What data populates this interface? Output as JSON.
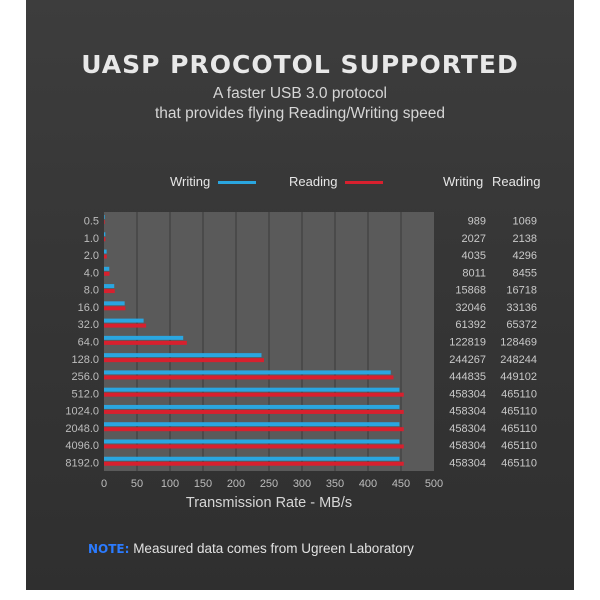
{
  "header": {
    "title": "UASP PROCOTOL SUPPORTED",
    "subtitle_line1": "A faster USB 3.0 protocol",
    "subtitle_line2": "that provides flying Reading/Writing speed"
  },
  "legend": {
    "writing_label": "Writing",
    "reading_label": "Reading"
  },
  "table": {
    "writing_header": "Writing",
    "reading_header": "Reading"
  },
  "colors": {
    "writing": "#2aa6e0",
    "reading": "#d8202e",
    "plot_bg": "#5a5a5a",
    "grid": "#3a3a3a"
  },
  "footer": {
    "note_tag": "NOTE:",
    "note_text": " Measured data comes from Ugreen Laboratory"
  },
  "chart_data": {
    "type": "bar",
    "orientation": "horizontal",
    "title": "UASP PROCOTOL SUPPORTED",
    "xlabel": "Transmission Rate - MB/s",
    "ylabel": "",
    "xlim": [
      0,
      500
    ],
    "xticks": [
      0,
      50,
      100,
      150,
      200,
      250,
      300,
      350,
      400,
      450,
      500
    ],
    "categories": [
      "0.5",
      "1.0",
      "2.0",
      "4.0",
      "8.0",
      "16.0",
      "32.0",
      "64.0",
      "128.0",
      "256.0",
      "512.0",
      "1024.0",
      "2048.0",
      "4096.0",
      "8192.0"
    ],
    "grid": true,
    "legend_position": "top",
    "series": [
      {
        "name": "Writing",
        "values": [
          1,
          2,
          4,
          8,
          15.5,
          31.3,
          60,
          120,
          238.6,
          434.4,
          447.6,
          447.6,
          447.6,
          447.6,
          447.6
        ],
        "table_values": [
          "989",
          "2027",
          "4035",
          "8011",
          "15868",
          "32046",
          "61392",
          "122819",
          "244267",
          "444835",
          "458304",
          "458304",
          "458304",
          "458304",
          "458304"
        ]
      },
      {
        "name": "Reading",
        "values": [
          1,
          2.1,
          4.2,
          8.3,
          16.3,
          32.4,
          63.8,
          125.5,
          242.4,
          438.6,
          454.2,
          454.2,
          454.2,
          454.2,
          454.2
        ],
        "table_values": [
          "1069",
          "2138",
          "4296",
          "8455",
          "16718",
          "33136",
          "65372",
          "128469",
          "248244",
          "449102",
          "465110",
          "465110",
          "465110",
          "465110",
          "465110"
        ]
      }
    ]
  }
}
